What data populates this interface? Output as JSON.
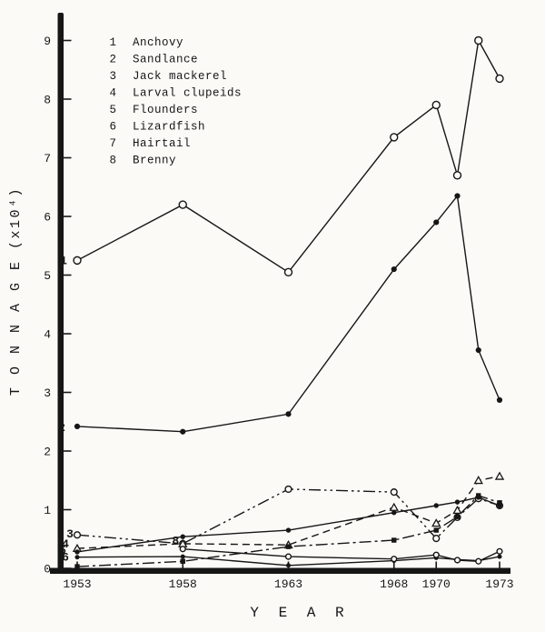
{
  "figure": {
    "bg": "#fbfaf7",
    "ink": "#161616",
    "description": "Scanned typewriter-style line chart of fish catch tonnage by year"
  },
  "chart_data": {
    "type": "line",
    "title": "",
    "xlabel": "Y E A R",
    "ylabel": "T O N N A G E  (x10⁴)",
    "x": [
      1953,
      1958,
      1963,
      1968,
      1970,
      1971,
      1972,
      1973
    ],
    "x_tick_labels": [
      "1953",
      "1958",
      "1963",
      "1968",
      "1970",
      "1973"
    ],
    "x_tick_years": [
      1953,
      1958,
      1963,
      1968,
      1970,
      1973
    ],
    "y_ticks": [
      "0",
      "1",
      "2",
      "3",
      "4",
      "5",
      "6",
      "7",
      "8",
      "9"
    ],
    "ylim": [
      0,
      9.5
    ],
    "grid": false,
    "legend_position": "top-left-inside",
    "series": [
      {
        "id": "1",
        "name": "Anchovy",
        "marker": "open-circle",
        "line": "solid",
        "values": [
          5.25,
          6.2,
          5.05,
          7.35,
          7.9,
          6.7,
          9.0,
          8.35
        ]
      },
      {
        "id": "2",
        "name": "Sandlance",
        "marker": "filled-circle",
        "line": "solid",
        "values": [
          2.42,
          2.33,
          2.63,
          5.1,
          5.9,
          6.35,
          3.72,
          2.87
        ]
      },
      {
        "id": "3",
        "name": "Jack mackerel",
        "marker": "open-circle",
        "line": "dash-dot-dot",
        "values": [
          0.57,
          0.42,
          1.35,
          1.3,
          0.51,
          0.87,
          1.19,
          1.07
        ]
      },
      {
        "id": "4",
        "name": "Larval clupeids",
        "marker": "open-triangle",
        "line": "dashed",
        "values": [
          0.34,
          0.42,
          0.4,
          1.04,
          0.77,
          0.99,
          1.5,
          1.57
        ]
      },
      {
        "id": "5",
        "name": "Flounders",
        "marker": "filled-circle",
        "line": "solid",
        "values": [
          0.28,
          0.54,
          0.65,
          0.95,
          1.07,
          1.13,
          1.21,
          1.07
        ]
      },
      {
        "id": "6",
        "name": "Lizardfish",
        "marker": "filled-circle",
        "line": "solid",
        "values": [
          0.19,
          0.2,
          0.05,
          0.13,
          0.18,
          0.15,
          0.13,
          0.2
        ]
      },
      {
        "id": "7",
        "name": "Hairtail",
        "marker": "filled-square",
        "line": "dash-dot",
        "values": [
          0.03,
          0.12,
          0.37,
          0.48,
          0.65,
          0.88,
          1.24,
          1.12
        ]
      },
      {
        "id": "8",
        "name": "Brenny",
        "marker": "open-circle",
        "line": "solid",
        "values": [
          null,
          0.33,
          0.2,
          0.16,
          0.23,
          0.14,
          0.12,
          0.29
        ]
      }
    ]
  }
}
